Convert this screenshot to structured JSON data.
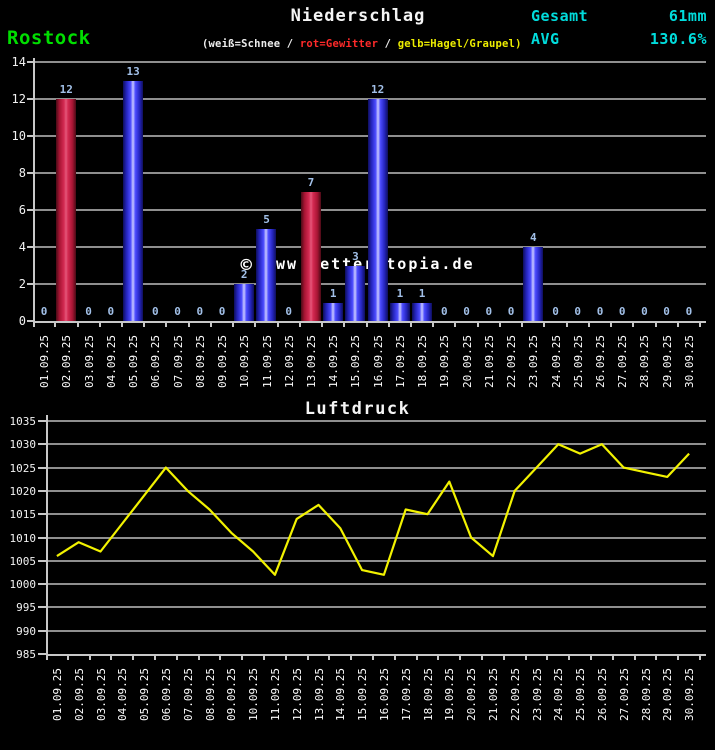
{
  "station": "Rostock",
  "header": {
    "title": "Niederschlag",
    "gesamt_label": "Gesamt",
    "gesamt_value": "61mm",
    "avg_label": "AVG",
    "avg_value": "130.6%"
  },
  "legend_parts": [
    {
      "text": "(weiß=Schnee",
      "color": "#ededed"
    },
    {
      "text": " / ",
      "color": "#ededed"
    },
    {
      "text": "rot=Gewitter",
      "color": "#ff2a2a"
    },
    {
      "text": " / ",
      "color": "#ededed"
    },
    {
      "text": "gelb=Hagel/Graupel)",
      "color": "#eded00"
    }
  ],
  "watermark": "www.wetterutopia.de",
  "watermark_symbol": "©",
  "colors": {
    "background": "#000000",
    "accent_cyan": "#00dcdc",
    "station_green": "#00de00",
    "rain_bar_blue": "#4b4bff",
    "thunder_bar_red": "#d42a52",
    "pressure_line_yellow": "#f2f200",
    "grid_gray": "#8f8f8f",
    "value_label_blue": "#a2c0e8"
  },
  "chart_data": [
    {
      "type": "bar",
      "title": "Niederschlag",
      "unit": "mm",
      "categories": [
        "01.09.25",
        "02.09.25",
        "03.09.25",
        "04.09.25",
        "05.09.25",
        "06.09.25",
        "07.09.25",
        "08.09.25",
        "09.09.25",
        "10.09.25",
        "11.09.25",
        "12.09.25",
        "13.09.25",
        "14.09.25",
        "15.09.25",
        "16.09.25",
        "17.09.25",
        "18.09.25",
        "19.09.25",
        "20.09.25",
        "21.09.25",
        "22.09.25",
        "23.09.25",
        "24.09.25",
        "25.09.25",
        "26.09.25",
        "27.09.25",
        "28.09.25",
        "29.09.25",
        "30.09.25"
      ],
      "values": [
        0,
        12,
        0,
        0,
        13,
        0,
        0,
        0,
        0,
        2,
        5,
        0,
        7,
        1,
        3,
        12,
        1,
        1,
        0,
        0,
        0,
        0,
        4,
        0,
        0,
        0,
        0,
        0,
        0,
        0
      ],
      "bar_types": [
        null,
        "gewitter",
        null,
        null,
        "regen",
        null,
        null,
        null,
        null,
        "regen",
        "regen",
        null,
        "gewitter",
        "regen",
        "regen",
        "regen",
        "regen",
        "regen",
        null,
        null,
        null,
        null,
        "regen",
        null,
        null,
        null,
        null,
        null,
        null,
        null
      ],
      "total": 61,
      "ylim": [
        0,
        14
      ],
      "yticks": [
        0,
        2,
        4,
        6,
        8,
        10,
        12,
        14
      ],
      "grid": true,
      "xlabel": "",
      "ylabel": ""
    },
    {
      "type": "line",
      "title": "Luftdruck",
      "categories": [
        "01.09.25",
        "02.09.25",
        "03.09.25",
        "04.09.25",
        "05.09.25",
        "06.09.25",
        "07.09.25",
        "08.09.25",
        "09.09.25",
        "10.09.25",
        "11.09.25",
        "12.09.25",
        "13.09.25",
        "14.09.25",
        "15.09.25",
        "16.09.25",
        "17.09.25",
        "18.09.25",
        "19.09.25",
        "20.09.25",
        "21.09.25",
        "22.09.25",
        "23.09.25",
        "24.09.25",
        "25.09.25",
        "26.09.25",
        "27.09.25",
        "28.09.25",
        "29.09.25",
        "30.09.25"
      ],
      "values": [
        1006,
        1009,
        1007,
        1013,
        1019,
        1025,
        1020,
        1016,
        1011,
        1007,
        1002,
        1014,
        1017,
        1012,
        1003,
        1002,
        1016,
        1015,
        1022,
        1010,
        1006,
        1020,
        1025,
        1030,
        1028,
        1030,
        1025,
        1024,
        1023,
        1028
      ],
      "ylim": [
        985,
        1035
      ],
      "yticks": [
        985,
        990,
        995,
        1000,
        1005,
        1010,
        1015,
        1020,
        1025,
        1030,
        1035
      ],
      "grid": true,
      "xlabel": "",
      "ylabel": ""
    }
  ]
}
